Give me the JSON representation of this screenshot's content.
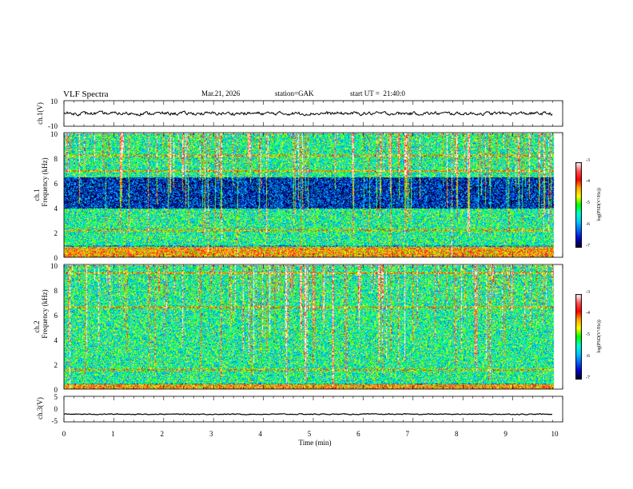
{
  "header": {
    "title": "VLF Spectra",
    "date": "Mar.21, 2026",
    "station": "station=GAK",
    "start_ut": "start UT =  21:40:0"
  },
  "panels": {
    "ch1": {
      "ylabel": "ch.1(V)",
      "yticks": [
        "10",
        "-10"
      ]
    },
    "spec1": {
      "ylabel_top": "ch.1",
      "ylabel_bottom": "Frequency (kHz)",
      "yticks": [
        "10",
        "8",
        "6",
        "4",
        "2",
        "0"
      ]
    },
    "spec2": {
      "ylabel_top": "ch.2",
      "ylabel_bottom": "Frequency (kHz)",
      "yticks": [
        "10",
        "8",
        "6",
        "4",
        "2",
        "0"
      ]
    },
    "ch3": {
      "ylabel": "ch.3(V)",
      "yticks": [
        "5",
        "0",
        "-5"
      ]
    }
  },
  "colorbar": {
    "label": "log(PSD(V²/Hz))",
    "ticks": [
      "-3",
      "-4",
      "-5",
      "-6",
      "-7"
    ],
    "colors": [
      "#ffffff",
      "#ff5555",
      "#ff0000",
      "#ffaa00",
      "#ffff00",
      "#00ff00",
      "#00ffcc",
      "#00ccff",
      "#0066ff",
      "#0000cc",
      "#000022"
    ]
  },
  "chart_data": {
    "type": "heatmap",
    "title": "VLF Spectra",
    "xlabel": "Time (min)",
    "x_ticks": [
      "0",
      "1",
      "2",
      "3",
      "4",
      "5",
      "6",
      "7",
      "8",
      "9",
      "10"
    ],
    "xlim": [
      0,
      10
    ],
    "data_end_min": 9.8,
    "series": [
      {
        "name": "ch.1(V)",
        "type": "line",
        "ylim": [
          -10,
          10
        ],
        "mean": 0,
        "noise_amplitude": 1
      },
      {
        "name": "ch.1 spectrogram",
        "type": "heatmap",
        "ylim_khz": [
          0,
          10
        ],
        "zlim_log_psd": [
          -7,
          -3
        ],
        "bands_khz": [
          [
            0.0,
            0.9,
            "high"
          ],
          [
            1.0,
            4.0,
            "moderate"
          ],
          [
            4.0,
            6.5,
            "low"
          ],
          [
            6.5,
            10.0,
            "moderate"
          ]
        ],
        "lines_khz": [
          7.0,
          8.2,
          2.2
        ]
      },
      {
        "name": "ch.2 spectrogram",
        "type": "heatmap",
        "ylim_khz": [
          0,
          10
        ],
        "zlim_log_psd": [
          -7,
          -3
        ],
        "bands_khz": [
          [
            0.0,
            0.4,
            "high"
          ],
          [
            0.5,
            3.5,
            "moderate"
          ],
          [
            3.5,
            10.0,
            "moderate"
          ]
        ],
        "lines_khz": [
          1.6,
          6.6,
          9.4
        ]
      },
      {
        "name": "ch.3(V)",
        "type": "line",
        "ylim": [
          -5,
          5
        ],
        "mean": -2,
        "noise_amplitude": 0.3
      }
    ]
  }
}
